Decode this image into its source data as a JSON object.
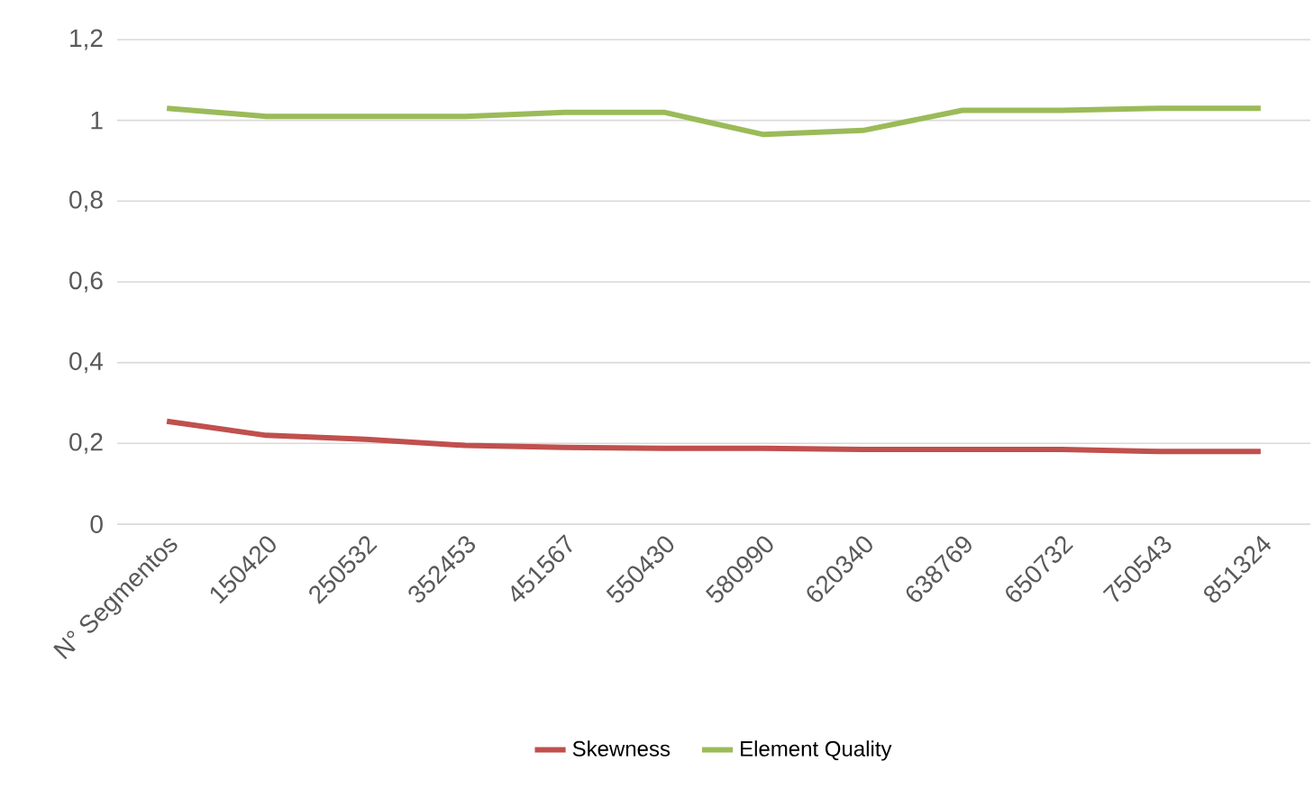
{
  "chart_data": {
    "type": "line",
    "categories": [
      "N° Segmentos",
      "150420",
      "250532",
      "352453",
      "451567",
      "550430",
      "580990",
      "620340",
      "638769",
      "650732",
      "750543",
      "851324"
    ],
    "series": [
      {
        "name": "Skewness",
        "color": "#c0504d",
        "values": [
          0.255,
          0.22,
          0.21,
          0.195,
          0.19,
          0.188,
          0.188,
          0.185,
          0.185,
          0.185,
          0.18,
          0.18
        ]
      },
      {
        "name": "Element Quality",
        "color": "#9bbb59",
        "values": [
          1.03,
          1.01,
          1.01,
          1.01,
          1.02,
          1.02,
          0.965,
          0.975,
          1.025,
          1.025,
          1.03,
          1.03
        ]
      }
    ],
    "ylim": [
      0,
      1.2
    ],
    "yticks": [
      {
        "value": 0,
        "label": "0"
      },
      {
        "value": 0.2,
        "label": "0,2"
      },
      {
        "value": 0.4,
        "label": "0,4"
      },
      {
        "value": 0.6,
        "label": "0,6"
      },
      {
        "value": 0.8,
        "label": "0,8"
      },
      {
        "value": 1,
        "label": "1"
      },
      {
        "value": 1.2,
        "label": "1,2"
      }
    ],
    "grid": "y",
    "legend": "bottom",
    "marker": "none",
    "line_style": "solid"
  }
}
